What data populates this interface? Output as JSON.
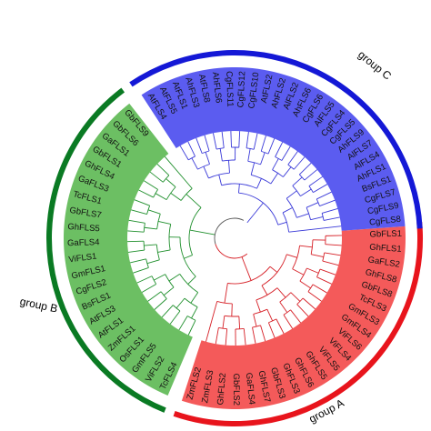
{
  "groups": {
    "A": {
      "label": "group A",
      "ring_color": "#e8141c",
      "band_color": "#f45a5a",
      "branch_color": "#d61f26",
      "leaves": [
        "GbFLS1",
        "GhFLS1",
        "GaFLS2",
        "GhFLS8",
        "GbFLS8",
        "TcFLS3",
        "GmFLS3",
        "GmFLS4",
        "ViFLS6",
        "ViFLS4",
        "ViFLS5",
        "GhFLS5",
        "GhFLS6",
        "GhFLS3",
        "GbFLS3",
        "GhFLS7",
        "GaFLS4",
        "GbFLS2",
        "GhFLS2",
        "ZmFLS3",
        "ZmFLS2"
      ]
    },
    "B": {
      "label": "group B",
      "ring_color": "#0a7a23",
      "band_color": "#6cbf63",
      "branch_color": "#1f8f2c",
      "leaves": [
        "TcFLS4",
        "ViFLS2",
        "GmFLS5",
        "OsFLS1",
        "ZmFLS1",
        "AtFLS1",
        "AtFLS3",
        "BsFLS1",
        "CgFLS2",
        "GmFLS1",
        "ViFLS1",
        "GaFLS4",
        "GhFLS5",
        "GbFLS7",
        "TcFLS1",
        "GaFLS3",
        "GhFLS4",
        "GbFLS1",
        "GaFLS1",
        "GbFLS6",
        "GbFLS9"
      ]
    },
    "C": {
      "label": "group C",
      "ring_color": "#1418d6",
      "band_color": "#5b5cf0",
      "branch_color": "#3a3ad8",
      "leaves": [
        "AtFLS4",
        "AtFLS5",
        "AtFLS1",
        "AhFLS3",
        "AtFLS8",
        "AhFLS6",
        "CgFLS11",
        "CgFLS12",
        "CgFLS10",
        "AtFLS2",
        "AhFLS2",
        "AlFLS2",
        "AhFLS6",
        "CgFLS6",
        "AlFLS5",
        "CgFLS4",
        "CgFLS5",
        "AhFLS9",
        "AlFLS7",
        "AlFLS4",
        "AhFLS1",
        "BsFLS1",
        "CgFLS7",
        "CgFLS9",
        "CgFLS8"
      ]
    }
  }
}
